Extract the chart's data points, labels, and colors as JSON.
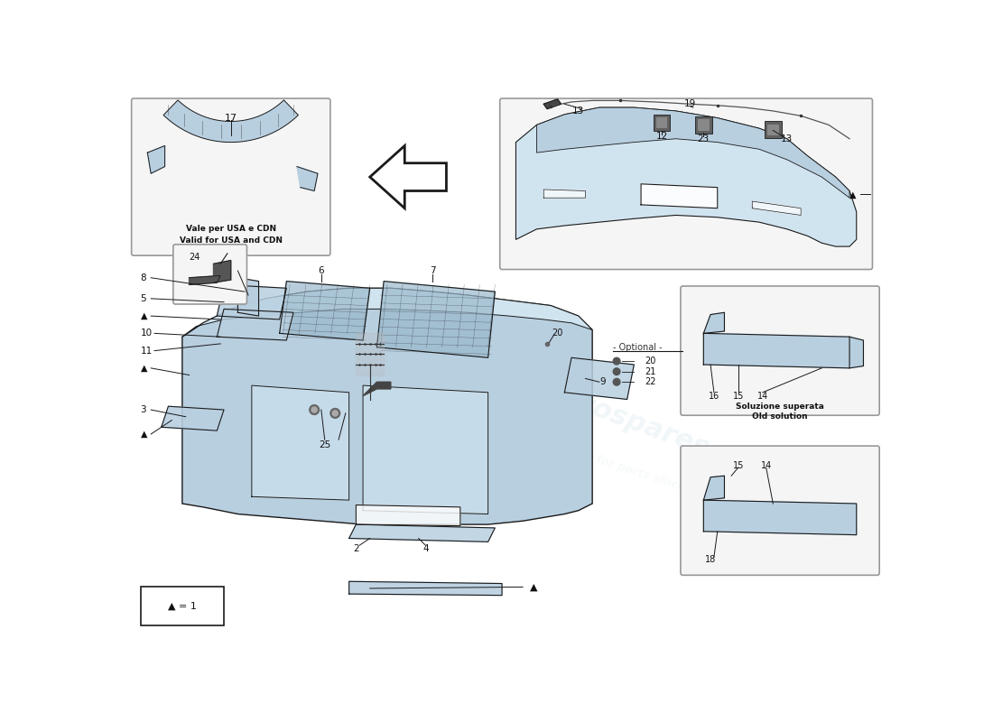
{
  "bg_color": "#ffffff",
  "bumper_color": "#b8cfe0",
  "bumper_color_dark": "#8aaac0",
  "bumper_color_light": "#d0e4f0",
  "grille_color": "#9ab8cc",
  "box_bg": "#f5f5f5",
  "box_edge": "#999999",
  "line_color": "#1a1a1a",
  "text_color": "#111111",
  "wm1": "#c8dce8",
  "wm2": "#d8ecda",
  "note_usa_line1": "Vale per USA e CDN",
  "note_usa_line2": "Valid for USA and CDN",
  "note_old_line1": "Soluzione superata",
  "note_old_line2": "Old solution",
  "note_optional": "- Optional -",
  "note_triangle": "▲ = 1"
}
